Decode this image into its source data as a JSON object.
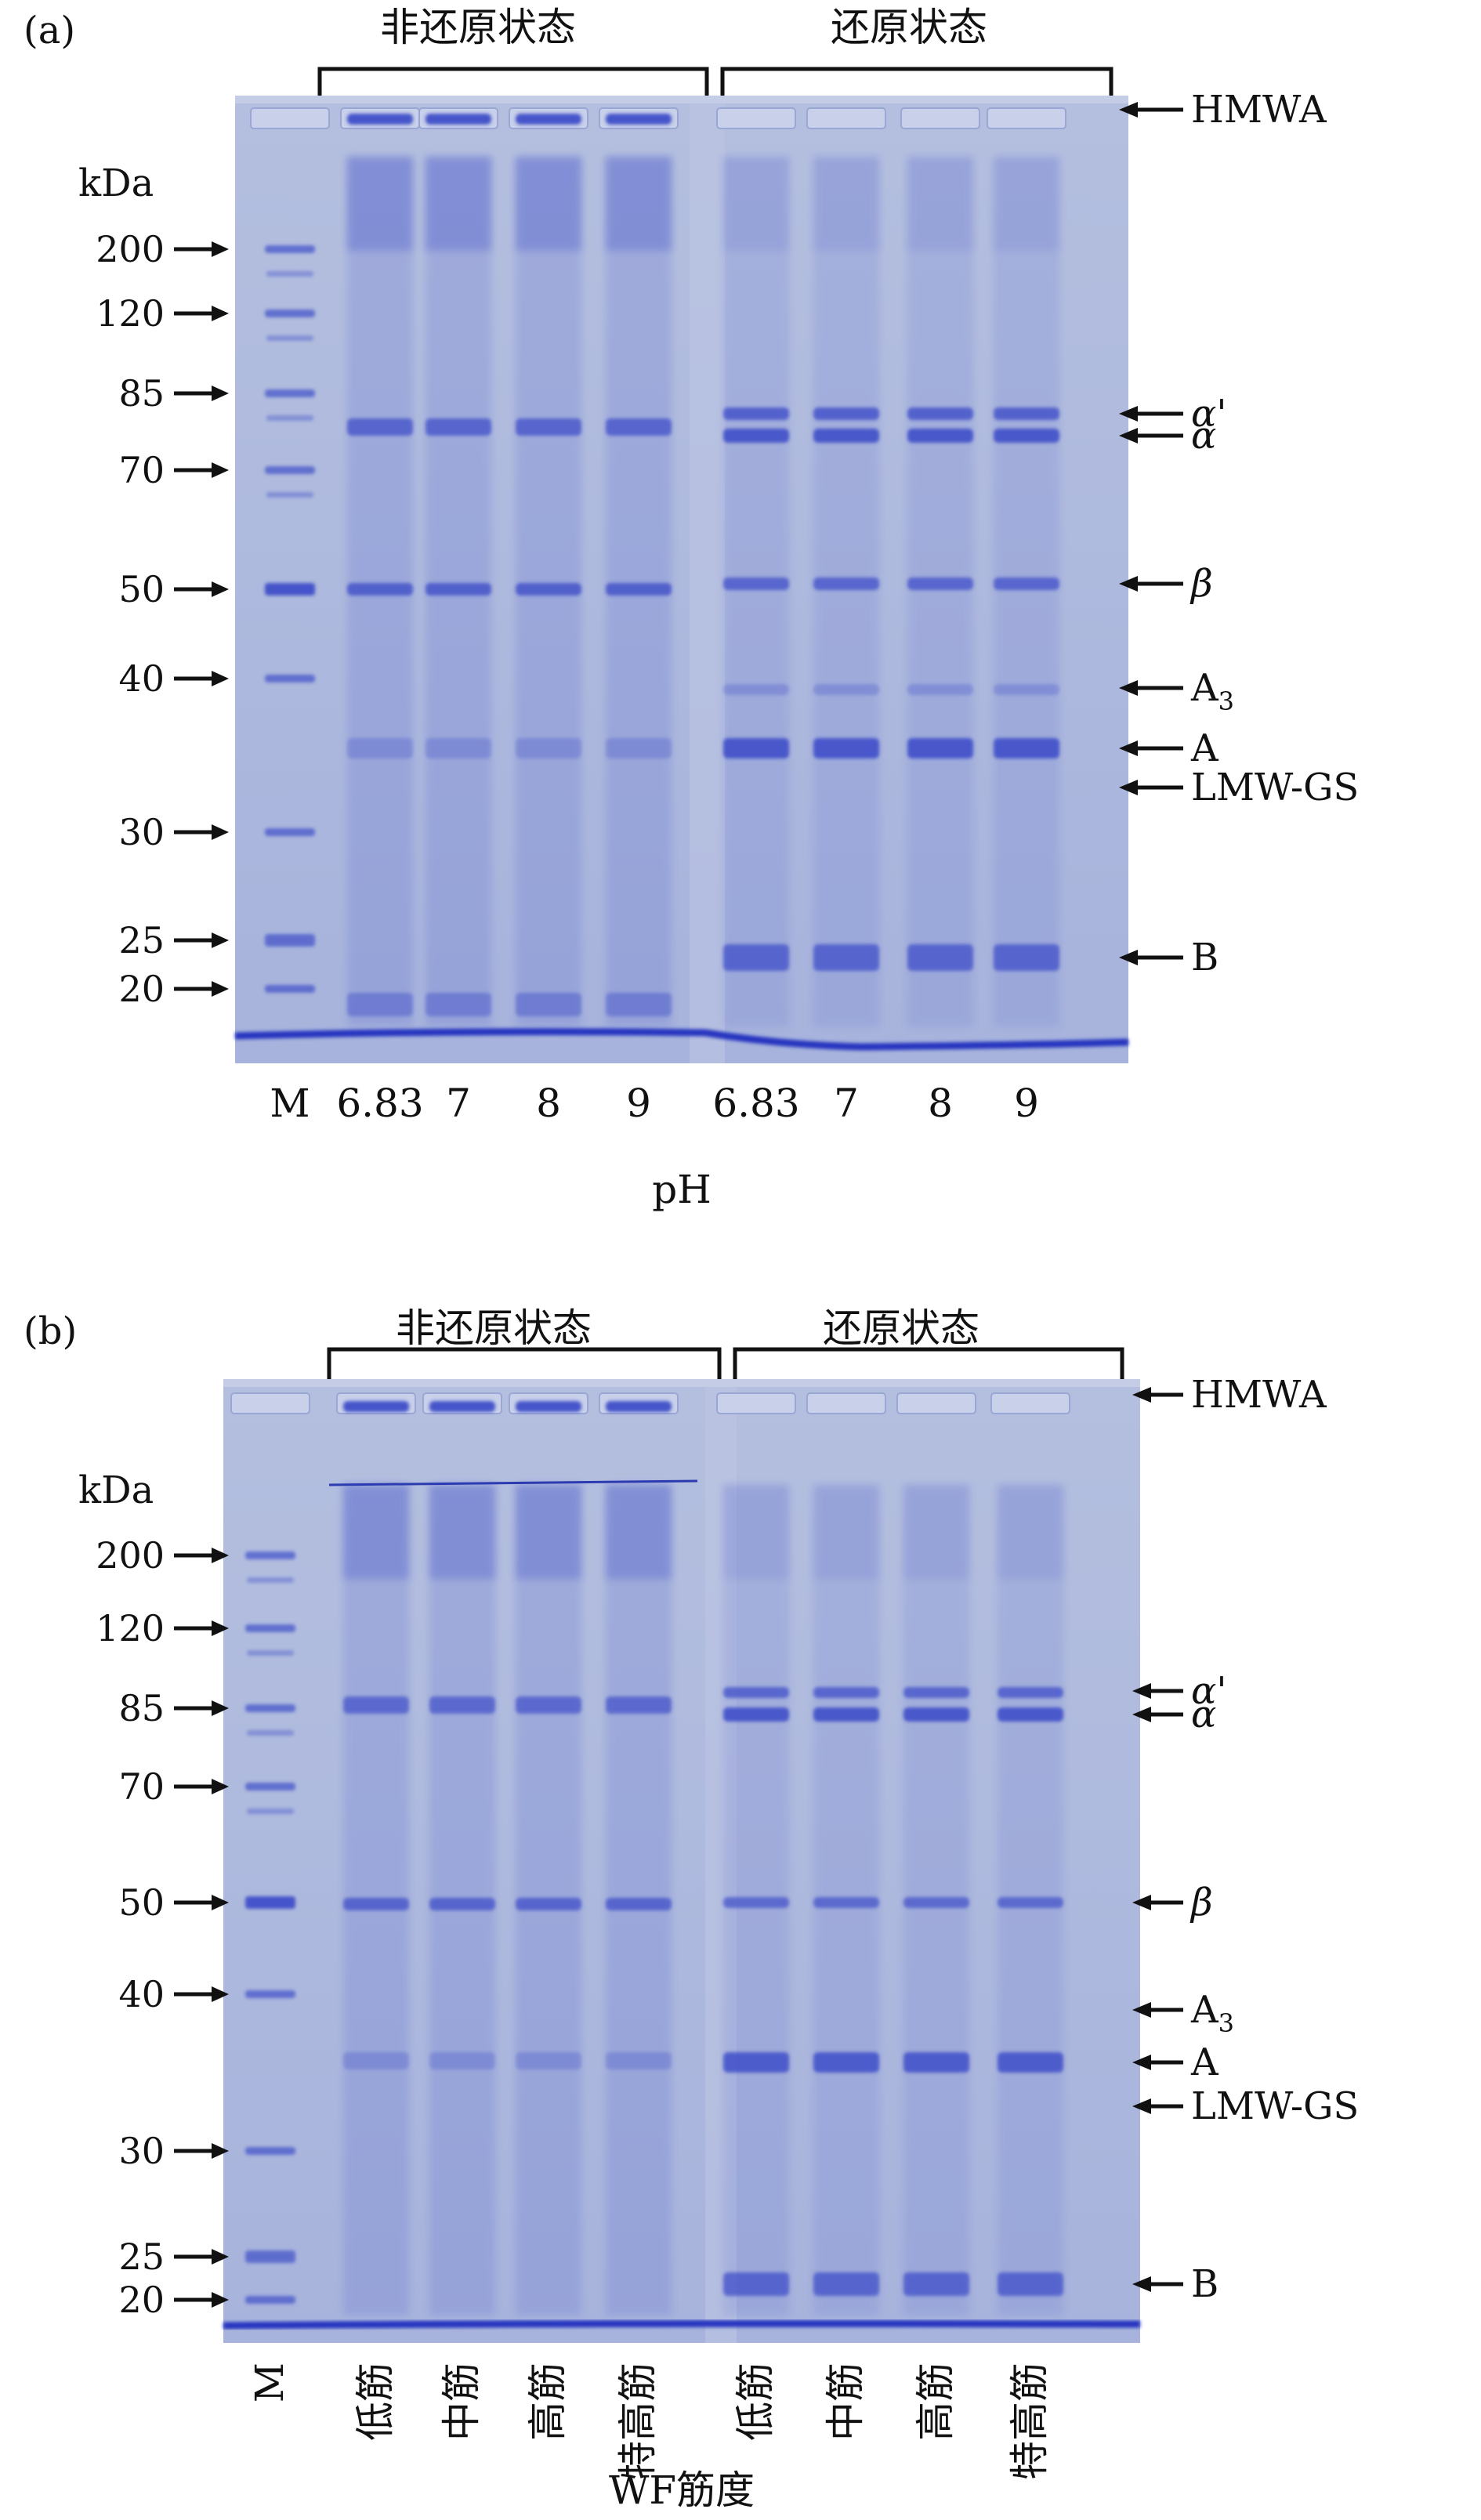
{
  "panels": [
    {
      "panel_label": "(a)",
      "group_nonreduced": "非还原状态",
      "group_reduced": "还原状态",
      "unit_label": "kDa",
      "markers": [
        "200",
        "120",
        "85",
        "70",
        "50",
        "40",
        "30",
        "25",
        "20"
      ],
      "bands": [
        "HMWA",
        "α'",
        "α",
        "β",
        "A",
        "LMW-GS",
        "B"
      ],
      "band_a3_main": "A",
      "band_a3_sub": "3",
      "lanes": [
        "M",
        "6.83",
        "7",
        "8",
        "9",
        "6.83",
        "7",
        "8",
        "9"
      ],
      "axis_label": "pH"
    },
    {
      "panel_label": "(b)",
      "group_nonreduced": "非还原状态",
      "group_reduced": "还原状态",
      "unit_label": "kDa",
      "markers": [
        "200",
        "120",
        "85",
        "70",
        "50",
        "40",
        "30",
        "25",
        "20"
      ],
      "bands": [
        "HMWA",
        "α'",
        "α",
        "β",
        "A",
        "LMW-GS",
        "B"
      ],
      "band_a3_main": "A",
      "band_a3_sub": "3",
      "lanes": [
        "M",
        "低筋",
        "中筋",
        "高筋",
        "特高筋",
        "低筋",
        "中筋",
        "高筋",
        "特高筋"
      ],
      "axis_label": "WF筋度"
    }
  ],
  "colors": {
    "gel_background": "#a9b6da",
    "band": "#3f4fc9",
    "dye_front": "#2535c0"
  }
}
